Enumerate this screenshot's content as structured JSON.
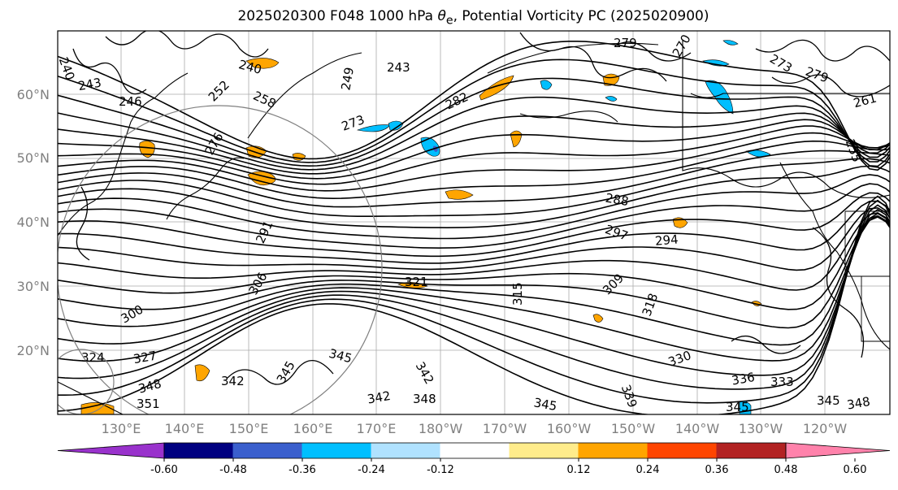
{
  "title": {
    "prefix": "2025020300 F048 1000 hPa ",
    "theta_base": "θ",
    "theta_sub": "e",
    "suffix": ", Potential Vorticity PC (2025020900)"
  },
  "lat_labels": [
    "60°N",
    "50°N",
    "40°N",
    "30°N",
    "20°N"
  ],
  "lon_labels": [
    "130°E",
    "140°E",
    "150°E",
    "160°E",
    "170°E",
    "180°W",
    "170°W",
    "160°W",
    "150°W",
    "140°W",
    "130°W",
    "120°W"
  ],
  "contour_labels": [
    "240",
    "243",
    "246",
    "249",
    "252",
    "255",
    "258",
    "261",
    "270",
    "273",
    "276",
    "279",
    "282",
    "288",
    "291",
    "294",
    "297",
    "300",
    "306",
    "309",
    "315",
    "318",
    "321",
    "324",
    "327",
    "330",
    "333",
    "336",
    "339",
    "342",
    "345",
    "348",
    "351"
  ],
  "colorbar": {
    "ticks": [
      "-0.60",
      "-0.48",
      "-0.36",
      "-0.24",
      "-0.12",
      "0.12",
      "0.24",
      "0.36",
      "0.48",
      "0.60"
    ],
    "colors": [
      "#9932cc",
      "#000080",
      "#3a5fcd",
      "#00bfff",
      "#b0e2ff",
      "#ffffff",
      "#ffec8b",
      "#ffa500",
      "#ff4500",
      "#b22222",
      "#ff82ab"
    ]
  }
}
